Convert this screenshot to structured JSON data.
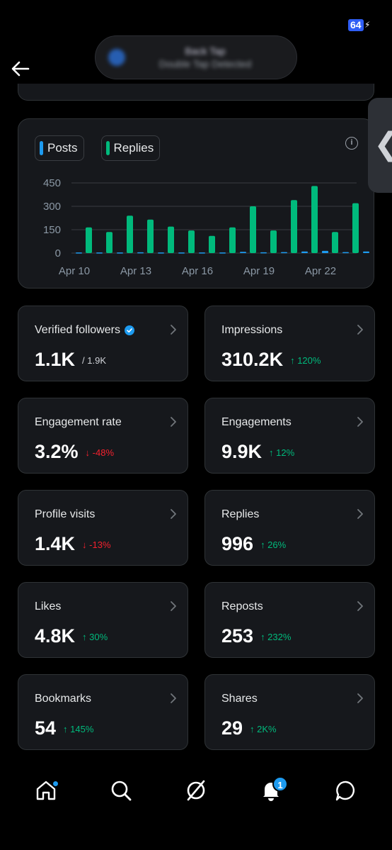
{
  "status": {
    "battery": "64",
    "bolt": "⚡"
  },
  "notification_pill": {
    "title": "Back Tap",
    "subtitle": "Double Tap Detected"
  },
  "chart_data": {
    "type": "bar",
    "title": "",
    "xlabel": "",
    "ylabel": "",
    "ylim": [
      0,
      450
    ],
    "yticks": [
      0,
      150,
      300,
      450
    ],
    "xtick_labels": [
      "Apr 10",
      "Apr 13",
      "Apr 16",
      "Apr 19",
      "Apr 22"
    ],
    "xtick_indices": [
      0,
      3,
      6,
      9,
      12
    ],
    "categories": [
      "Apr 10",
      "Apr 11",
      "Apr 12",
      "Apr 13",
      "Apr 14",
      "Apr 15",
      "Apr 16",
      "Apr 17",
      "Apr 18",
      "Apr 19",
      "Apr 20",
      "Apr 21",
      "Apr 22",
      "Apr 23",
      "Apr 24"
    ],
    "series": [
      {
        "name": "Posts",
        "color": "#1d9bf0",
        "values": [
          4,
          4,
          4,
          5,
          4,
          4,
          4,
          4,
          8,
          5,
          6,
          10,
          14,
          6,
          10
        ]
      },
      {
        "name": "Replies",
        "color": "#00ba7c",
        "values": [
          165,
          135,
          240,
          215,
          170,
          145,
          110,
          165,
          300,
          145,
          340,
          430,
          135,
          320,
          0
        ]
      }
    ],
    "legend_position": "top-left",
    "grid": true
  },
  "stats": [
    {
      "label": "Verified followers",
      "value": "1.1K",
      "change": "/ 1.9K",
      "trend": "neutral",
      "verified": true
    },
    {
      "label": "Impressions",
      "value": "310.2K",
      "change": "↑ 120%",
      "trend": "up"
    },
    {
      "label": "Engagement rate",
      "value": "3.2%",
      "change": "↓ -48%",
      "trend": "down"
    },
    {
      "label": "Engagements",
      "value": "9.9K",
      "change": "↑ 12%",
      "trend": "up"
    },
    {
      "label": "Profile visits",
      "value": "1.4K",
      "change": "↓ -13%",
      "trend": "down"
    },
    {
      "label": "Replies",
      "value": "996",
      "change": "↑ 26%",
      "trend": "up"
    },
    {
      "label": "Likes",
      "value": "4.8K",
      "change": "↑ 30%",
      "trend": "up"
    },
    {
      "label": "Reposts",
      "value": "253",
      "change": "↑ 232%",
      "trend": "up"
    },
    {
      "label": "Bookmarks",
      "value": "54",
      "change": "↑ 145%",
      "trend": "up"
    },
    {
      "label": "Shares",
      "value": "29",
      "change": "↑ 2K%",
      "trend": "up"
    }
  ],
  "nav": {
    "items": [
      "home-icon",
      "search-icon",
      "grok-icon",
      "notifications-icon",
      "messages-icon"
    ],
    "notification_count": "1"
  },
  "colors": {
    "accent": "#1d9bf0",
    "positive": "#00ba7c",
    "negative": "#f4212e"
  }
}
